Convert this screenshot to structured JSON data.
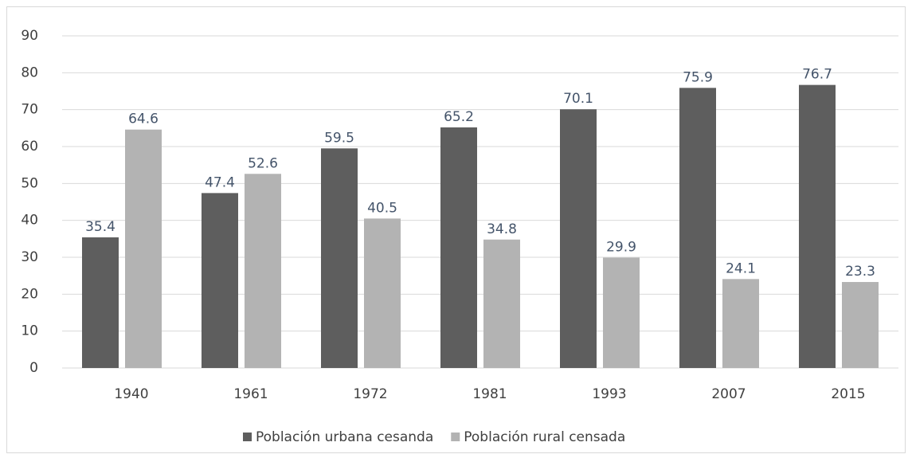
{
  "chart_data": {
    "type": "bar",
    "categories": [
      "1940",
      "1961",
      "1972",
      "1981",
      "1993",
      "2007",
      "2015"
    ],
    "series": [
      {
        "name": "Población urbana cesanda",
        "color": "#5e5e5e",
        "values": [
          35.4,
          47.4,
          59.5,
          65.2,
          70.1,
          75.9,
          76.7
        ]
      },
      {
        "name": "Población rural censada",
        "color": "#b3b3b3",
        "values": [
          64.6,
          52.6,
          40.5,
          34.8,
          29.9,
          24.1,
          23.3
        ]
      }
    ],
    "ylim": [
      0,
      90
    ],
    "yticks": [
      0,
      10,
      20,
      30,
      40,
      50,
      60,
      70,
      80,
      90
    ],
    "grid": true,
    "legend": "bottom"
  }
}
